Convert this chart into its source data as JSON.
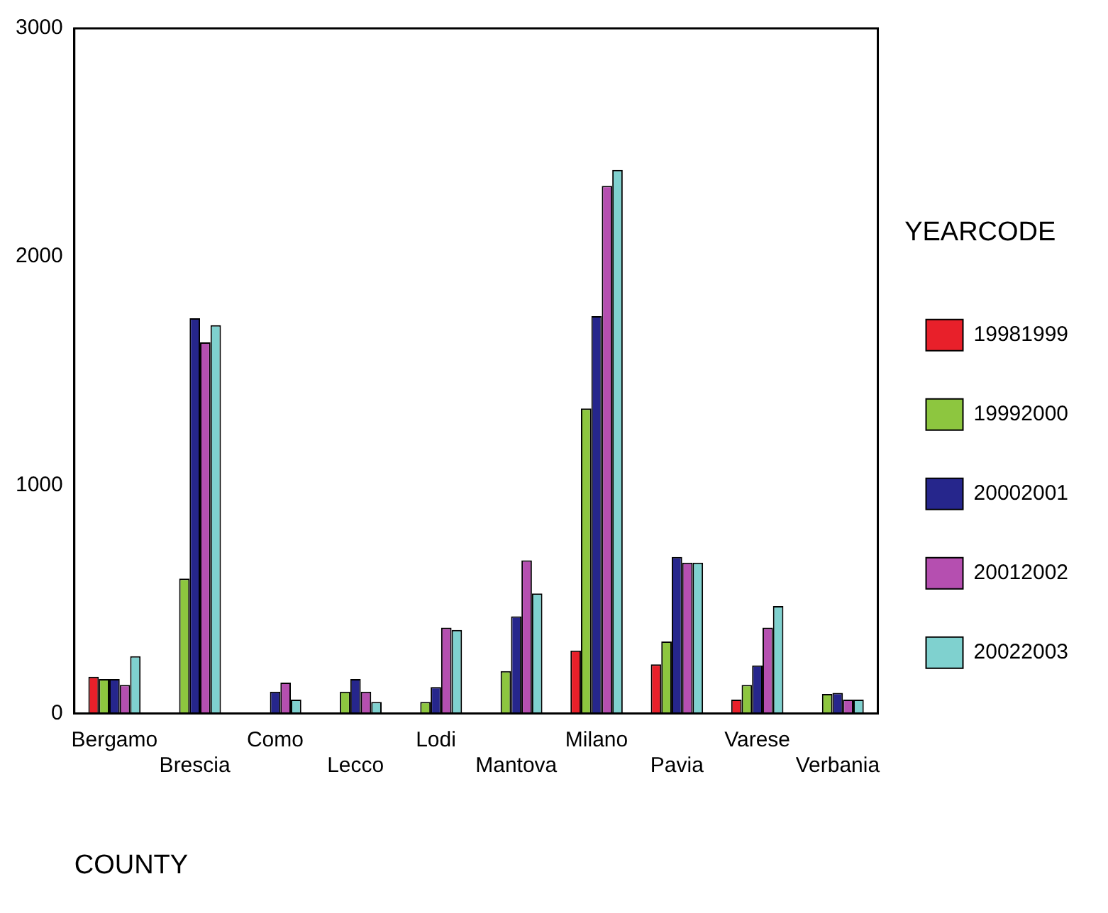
{
  "chart_data": {
    "type": "bar",
    "categories": [
      "Bergamo",
      "Brescia",
      "Como",
      "Lecco",
      "Lodi",
      "Mantova",
      "Milano",
      "Pavia",
      "Varese",
      "Verbania"
    ],
    "series": [
      {
        "name": "19981999",
        "color": "#e8202a",
        "values": [
          160,
          null,
          null,
          null,
          null,
          null,
          275,
          215,
          60,
          null
        ]
      },
      {
        "name": "19992000",
        "color": "#8dc63f",
        "values": [
          150,
          590,
          null,
          95,
          50,
          185,
          1335,
          315,
          125,
          85
        ]
      },
      {
        "name": "20002001",
        "color": "#26268c",
        "values": [
          150,
          1730,
          95,
          150,
          115,
          425,
          1740,
          685,
          210,
          90
        ]
      },
      {
        "name": "20012002",
        "color": "#b54fb0",
        "values": [
          125,
          1625,
          135,
          95,
          375,
          670,
          2310,
          660,
          375,
          60
        ]
      },
      {
        "name": "20022003",
        "color": "#7fd1cf",
        "values": [
          250,
          1700,
          60,
          50,
          365,
          525,
          2380,
          660,
          470,
          60
        ]
      }
    ],
    "xlabel": "COUNTY",
    "legend_title": "YEARCODE",
    "ylim": [
      0,
      3000
    ],
    "yticks": [
      0,
      1000,
      2000,
      3000
    ],
    "grid": false,
    "legend": "right"
  }
}
